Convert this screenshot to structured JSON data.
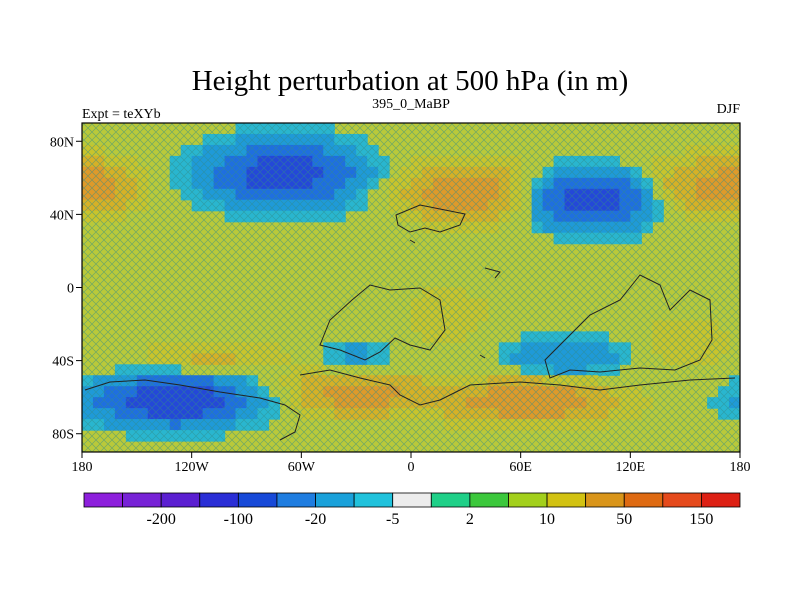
{
  "chart_data": {
    "type": "heatmap",
    "title": "Height perturbation at 500 hPa (in m)",
    "left_label": "Expt = teXYb",
    "center_label": "395_0_MaBP",
    "right_label": "DJF",
    "x_range": [
      -180,
      180
    ],
    "y_range": [
      -90,
      90
    ],
    "x_ticks": [
      {
        "value": -180,
        "label": "180"
      },
      {
        "value": -120,
        "label": "120W"
      },
      {
        "value": -60,
        "label": "60W"
      },
      {
        "value": 0,
        "label": "0"
      },
      {
        "value": 60,
        "label": "60E"
      },
      {
        "value": 120,
        "label": "120E"
      },
      {
        "value": 180,
        "label": "180"
      }
    ],
    "y_ticks": [
      {
        "value": 80,
        "label": "80N"
      },
      {
        "value": 40,
        "label": "40N"
      },
      {
        "value": 0,
        "label": "0"
      },
      {
        "value": -40,
        "label": "40S"
      },
      {
        "value": -80,
        "label": "80S"
      }
    ],
    "anomalies": [
      {
        "lon": -70,
        "lat": 62,
        "value": -55,
        "rlon": 38,
        "rlat": 16
      },
      {
        "lon": 100,
        "lat": 48,
        "value": -60,
        "rlon": 30,
        "rlat": 14
      },
      {
        "lon": -130,
        "lat": -62,
        "value": -65,
        "rlon": 38,
        "rlat": 12
      },
      {
        "lon": 85,
        "lat": -38,
        "value": -20,
        "rlon": 32,
        "rlat": 10
      },
      {
        "lon": -30,
        "lat": -38,
        "value": -12,
        "rlon": 22,
        "rlat": 9
      },
      {
        "lon": 30,
        "lat": 52,
        "value": 30,
        "rlon": 35,
        "rlat": 16
      },
      {
        "lon": 160,
        "lat": 55,
        "value": 22,
        "rlon": 35,
        "rlat": 16
      },
      {
        "lon": -170,
        "lat": 55,
        "value": 18,
        "rlon": 20,
        "rlat": 14
      },
      {
        "lon": -30,
        "lat": -58,
        "value": 28,
        "rlon": 35,
        "rlat": 12
      },
      {
        "lon": 65,
        "lat": -62,
        "value": 32,
        "rlon": 45,
        "rlat": 12
      },
      {
        "lon": -110,
        "lat": -38,
        "value": 12,
        "rlon": 40,
        "rlat": 9
      },
      {
        "lon": 20,
        "lat": -15,
        "value": 8,
        "rlon": 25,
        "rlat": 18
      },
      {
        "lon": 150,
        "lat": -30,
        "value": 10,
        "rlon": 25,
        "rlat": 15
      }
    ],
    "colorbar": {
      "colors": [
        "#8d1fdc",
        "#7722d6",
        "#5b1fd1",
        "#2a2ed6",
        "#1749d8",
        "#1f7de0",
        "#1aa1da",
        "#21c2dc",
        "#ececec",
        "#1fd088",
        "#3cc83c",
        "#a3d01c",
        "#d2c212",
        "#d9951a",
        "#de6a12",
        "#e54a1c",
        "#dd2014"
      ],
      "labels": [
        {
          "after": 1,
          "text": "-200"
        },
        {
          "after": 3,
          "text": "-100"
        },
        {
          "after": 5,
          "text": "-20"
        },
        {
          "after": 7,
          "text": "-5"
        },
        {
          "after": 9,
          "text": "2"
        },
        {
          "after": 11,
          "text": "10"
        },
        {
          "after": 13,
          "text": "50"
        },
        {
          "after": 15,
          "text": "150"
        }
      ]
    }
  }
}
